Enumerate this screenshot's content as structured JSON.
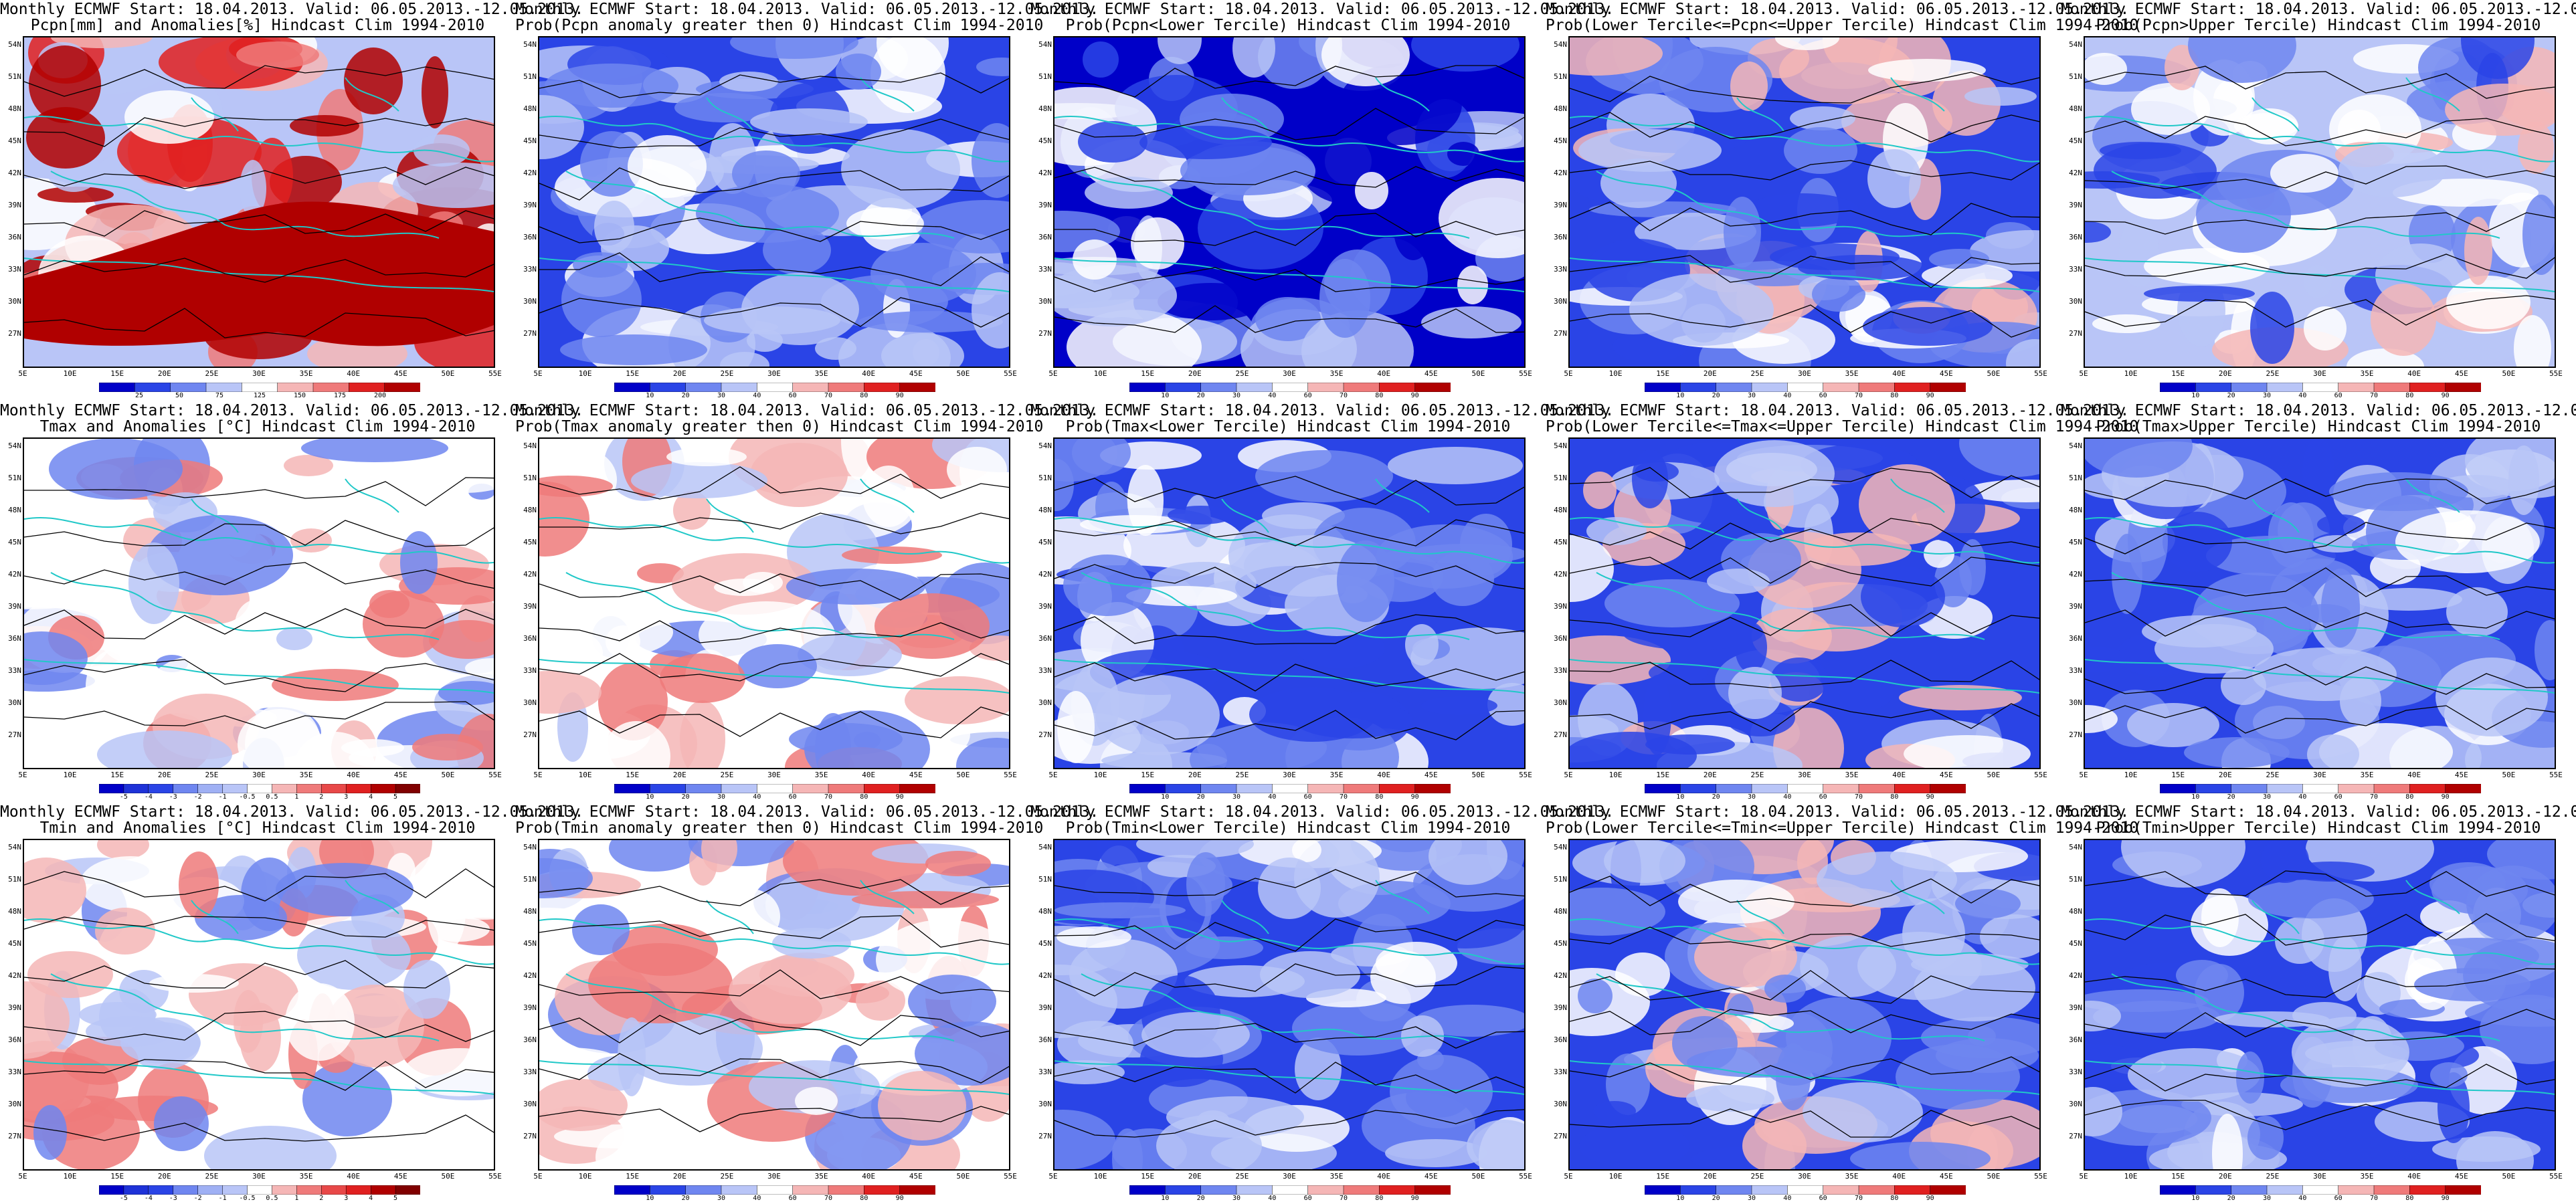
{
  "header": {
    "line1": "Monthly ECMWF Start: 18.04.2013. Valid: 06.05.2013.-12.05.2013."
  },
  "axes": {
    "lat_labels": [
      "54N",
      "51N",
      "48N",
      "45N",
      "42N",
      "39N",
      "36N",
      "33N",
      "30N",
      "27N"
    ],
    "lon_labels": [
      "5E",
      "10E",
      "15E",
      "20E",
      "25E",
      "30E",
      "35E",
      "40E",
      "45E",
      "50E",
      "55E"
    ]
  },
  "colorbars": {
    "precip_anomaly": [
      "25",
      "50",
      "75",
      "125",
      "150",
      "175",
      "200"
    ],
    "temp_anomaly": [
      "-5",
      "-4",
      "-3",
      "-2",
      "-1",
      "-0.5",
      "0.5",
      "1",
      "2",
      "3",
      "4",
      "5"
    ],
    "probability": [
      "10",
      "20",
      "30",
      "40",
      "60",
      "70",
      "80",
      "90"
    ]
  },
  "colors": {
    "deep_blue": "#0000c8",
    "blue": "#2a44e6",
    "mid_blue": "#6f86f0",
    "light_blue": "#b9c5f7",
    "white": "#ffffff",
    "light_red": "#f5b6b6",
    "mid_red": "#ef7a7a",
    "red": "#e02020",
    "dark_red": "#b00000",
    "coast": "#20c8c8",
    "contour": "#000000"
  },
  "panels": [
    {
      "row": 0,
      "col": 0,
      "title": "Pcpn[mm] and Anomalies[%] Hindcast Clim 1994-2010",
      "cbar": "precip_anomaly",
      "scheme": "precip"
    },
    {
      "row": 0,
      "col": 1,
      "title": "Prob(Pcpn anomaly greater then 0) Hindcast Clim 1994-2010",
      "cbar": "probability",
      "scheme": "blue"
    },
    {
      "row": 0,
      "col": 2,
      "title": "Prob(Pcpn<Lower Tercile) Hindcast Clim 1994-2010",
      "cbar": "probability",
      "scheme": "deepblue"
    },
    {
      "row": 0,
      "col": 3,
      "title": "Prob(Lower Tercile<=Pcpn<=Upper Tercile) Hindcast Clim 1994-2010",
      "cbar": "probability",
      "scheme": "mixed"
    },
    {
      "row": 0,
      "col": 4,
      "title": "Prob(Pcpn>Upper Tercile) Hindcast Clim 1994-2010",
      "cbar": "probability",
      "scheme": "lightmix"
    },
    {
      "row": 1,
      "col": 0,
      "title": "Tmax and Anomalies [°C] Hindcast Clim 1994-2010",
      "cbar": "temp_anomaly",
      "scheme": "warm"
    },
    {
      "row": 1,
      "col": 1,
      "title": "Prob(Tmax anomaly greater then 0) Hindcast Clim 1994-2010",
      "cbar": "probability",
      "scheme": "warm"
    },
    {
      "row": 1,
      "col": 2,
      "title": "Prob(Tmax<Lower Tercile) Hindcast Clim 1994-2010",
      "cbar": "probability",
      "scheme": "blue"
    },
    {
      "row": 1,
      "col": 3,
      "title": "Prob(Lower Tercile<=Tmax<=Upper Tercile) Hindcast Clim 1994-2010",
      "cbar": "probability",
      "scheme": "mixed"
    },
    {
      "row": 1,
      "col": 4,
      "title": "Prob(Tmax>Upper Tercile) Hindcast Clim 1994-2010",
      "cbar": "probability",
      "scheme": "blue"
    },
    {
      "row": 2,
      "col": 0,
      "title": "Tmin and Anomalies [°C] Hindcast Clim 1994-2010",
      "cbar": "temp_anomaly",
      "scheme": "warm"
    },
    {
      "row": 2,
      "col": 1,
      "title": "Prob(Tmin anomaly greater then 0) Hindcast Clim 1994-2010",
      "cbar": "probability",
      "scheme": "warm"
    },
    {
      "row": 2,
      "col": 2,
      "title": "Prob(Tmin<Lower Tercile) Hindcast Clim 1994-2010",
      "cbar": "probability",
      "scheme": "blue"
    },
    {
      "row": 2,
      "col": 3,
      "title": "Prob(Lower Tercile<=Tmin<=Upper Tercile) Hindcast Clim 1994-2010",
      "cbar": "probability",
      "scheme": "mixed"
    },
    {
      "row": 2,
      "col": 4,
      "title": "Prob(Tmin>Upper Tercile) Hindcast Clim 1994-2010",
      "cbar": "probability",
      "scheme": "blue"
    }
  ]
}
